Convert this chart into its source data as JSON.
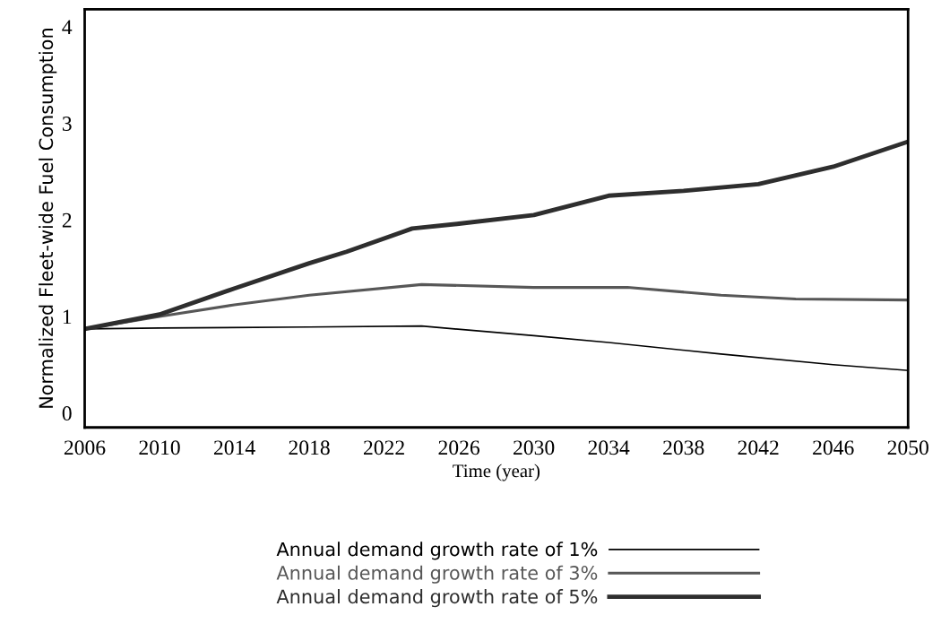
{
  "chart_data": {
    "type": "line",
    "xlabel": "Time (year)",
    "ylabel": "Normalized Fleet-wide Fuel Consumption",
    "xlim": [
      2006,
      2050
    ],
    "ylim": [
      -0.15,
      4.18
    ],
    "xticks": [
      2006,
      2010,
      2014,
      2018,
      2022,
      2026,
      2030,
      2034,
      2038,
      2042,
      2046,
      2050
    ],
    "yticks": [
      0,
      1,
      2,
      3,
      4
    ],
    "grid": false,
    "legend": "bottom",
    "series": [
      {
        "name": "Annual demand growth rate of 1%",
        "color": "#000000",
        "x": [
          2006,
          2010,
          2018,
          2024,
          2030,
          2034,
          2040,
          2046,
          2050
        ],
        "values": [
          0.87,
          0.88,
          0.89,
          0.9,
          0.8,
          0.73,
          0.61,
          0.5,
          0.44
        ]
      },
      {
        "name": "Annual demand growth rate of 3%",
        "color": "#575757",
        "x": [
          2006,
          2010,
          2014,
          2018,
          2024,
          2030,
          2035,
          2040,
          2044,
          2050
        ],
        "values": [
          0.87,
          1.0,
          1.12,
          1.22,
          1.33,
          1.3,
          1.3,
          1.22,
          1.18,
          1.17
        ]
      },
      {
        "name": "Annual demand growth rate of 5%",
        "color": "#2e2e2e",
        "x": [
          2006,
          2010,
          2014,
          2018,
          2020,
          2023.5,
          2026,
          2030,
          2034,
          2038,
          2042,
          2046,
          2050
        ],
        "values": [
          0.87,
          1.02,
          1.29,
          1.55,
          1.67,
          1.91,
          1.96,
          2.05,
          2.25,
          2.3,
          2.37,
          2.55,
          2.81
        ]
      }
    ]
  }
}
